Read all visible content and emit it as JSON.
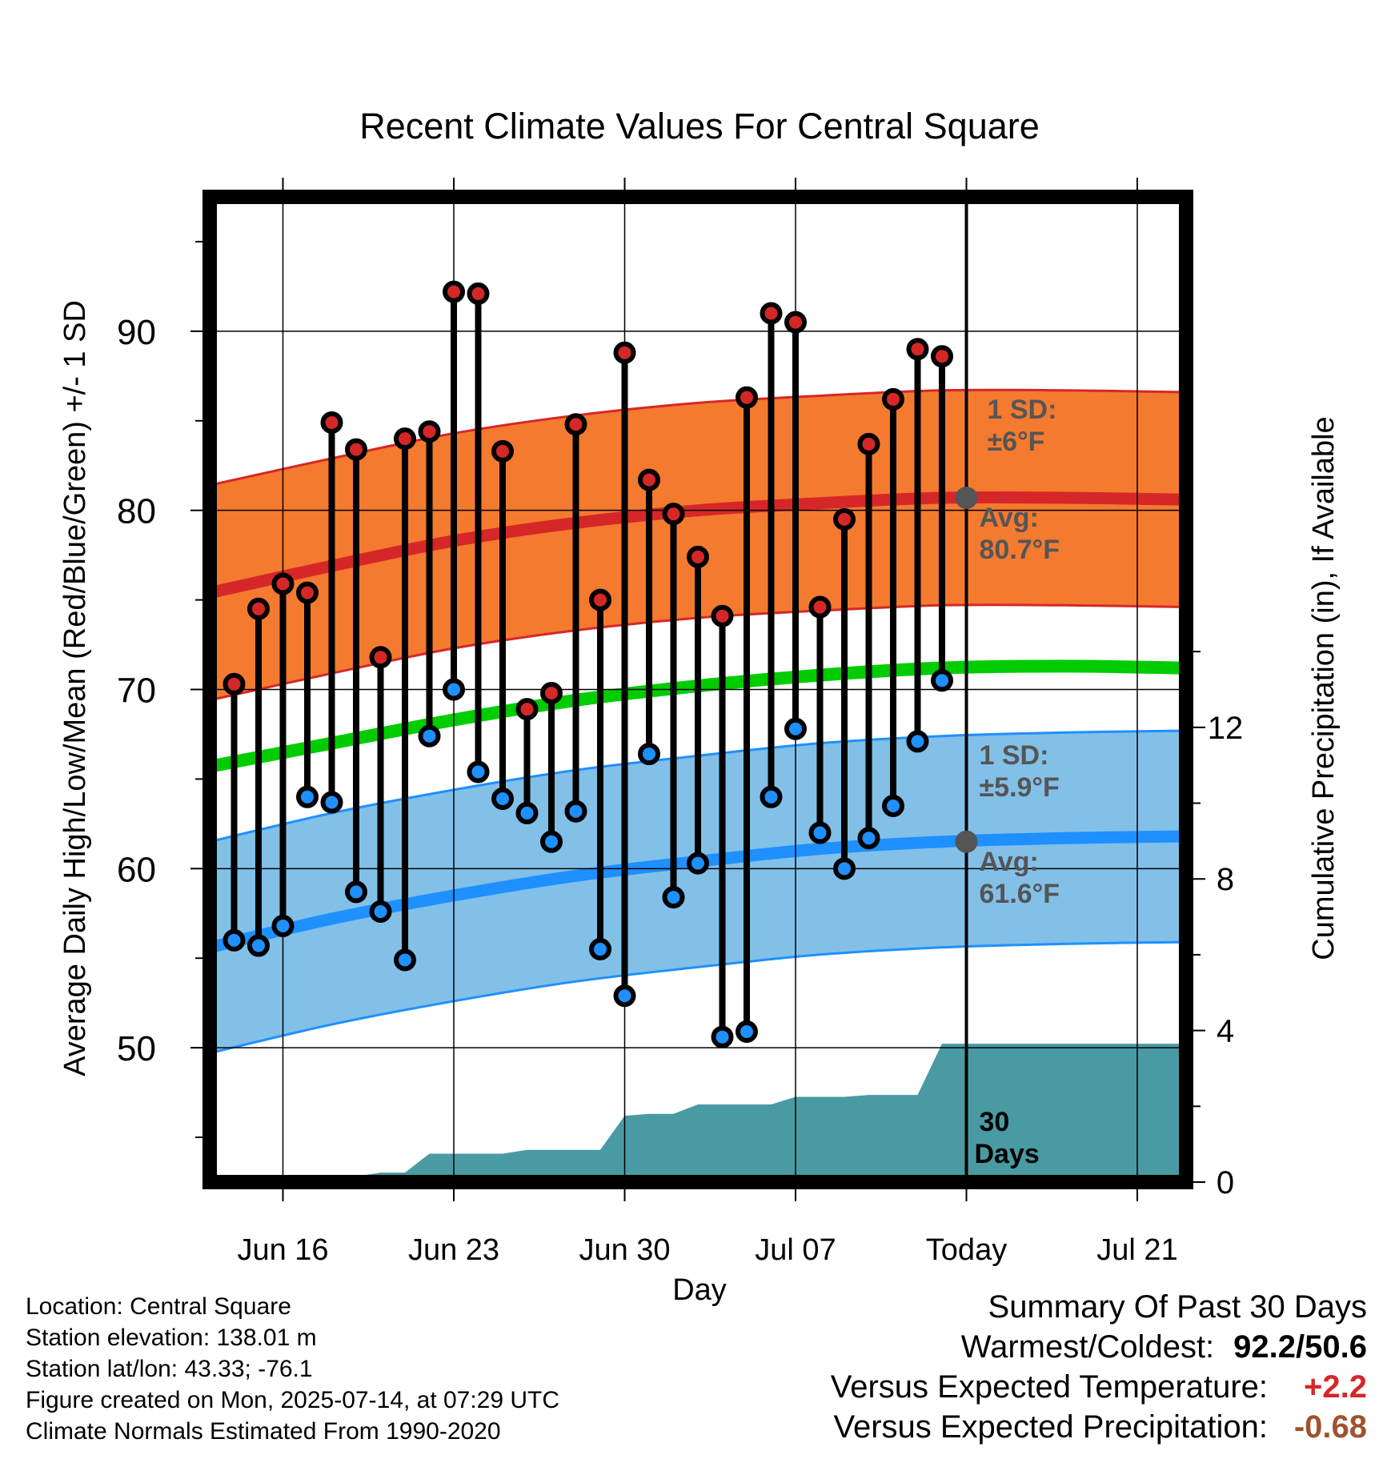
{
  "chart_data": {
    "type": "line",
    "title": "Recent Climate Values For Central Square",
    "xlabel": "Day",
    "ylabel": "Average Daily High/Low/Mean (Red/Blue/Green) +/- 1 SD",
    "y2label": "Cumulative Precipitation (in), If Available",
    "x_dates": [
      "Jun 14",
      "Jun 15",
      "Jun 16",
      "Jun 17",
      "Jun 18",
      "Jun 19",
      "Jun 20",
      "Jun 21",
      "Jun 22",
      "Jun 23",
      "Jun 24",
      "Jun 25",
      "Jun 26",
      "Jun 27",
      "Jun 28",
      "Jun 29",
      "Jun 30",
      "Jul 01",
      "Jul 02",
      "Jul 03",
      "Jul 04",
      "Jul 05",
      "Jul 06",
      "Jul 07",
      "Jul 08",
      "Jul 09",
      "Jul 10",
      "Jul 11",
      "Jul 12",
      "Jul 13",
      "Jul 14",
      "Jul 15",
      "Jul 16",
      "Jul 17",
      "Jul 18",
      "Jul 19",
      "Jul 20",
      "Jul 21",
      "Jul 22",
      "Jul 23"
    ],
    "xlim": [
      "Jun 13",
      "Jul 23"
    ],
    "ylim": [
      42.5,
      97.5
    ],
    "y2lim": [
      0,
      26
    ],
    "x_ticks": [
      {
        "date": "Jun 16",
        "label": "Jun 16"
      },
      {
        "date": "Jun 23",
        "label": "Jun 23"
      },
      {
        "date": "Jun 30",
        "label": "Jun 30"
      },
      {
        "date": "Jul 07",
        "label": "Jul 07"
      },
      {
        "date": "Jul 14",
        "label": "Today"
      },
      {
        "date": "Jul 21",
        "label": "Jul 21"
      }
    ],
    "y_ticks": [
      50,
      60,
      70,
      80,
      90
    ],
    "y2_ticks": [
      0,
      4,
      8,
      12
    ],
    "grid": true,
    "today": "Jul 14",
    "today_label": [
      "30",
      "Days"
    ],
    "series": [
      {
        "name": "High",
        "color": "#d62728",
        "dates": [
          "Jun 14",
          "Jun 15",
          "Jun 16",
          "Jun 17",
          "Jun 18",
          "Jun 19",
          "Jun 20",
          "Jun 21",
          "Jun 22",
          "Jun 23",
          "Jun 24",
          "Jun 25",
          "Jun 26",
          "Jun 27",
          "Jun 28",
          "Jun 29",
          "Jun 30",
          "Jul 01",
          "Jul 02",
          "Jul 03",
          "Jul 04",
          "Jul 05",
          "Jul 06",
          "Jul 07",
          "Jul 08",
          "Jul 09",
          "Jul 10",
          "Jul 11",
          "Jul 12",
          "Jul 13"
        ],
        "values": [
          70.3,
          74.5,
          75.9,
          75.4,
          84.9,
          83.4,
          71.8,
          84.0,
          84.4,
          92.2,
          92.1,
          83.3,
          68.9,
          69.8,
          84.8,
          75.0,
          88.8,
          81.7,
          79.8,
          77.4,
          74.1,
          86.3,
          91.0,
          90.5,
          74.6,
          79.5,
          83.7,
          86.2,
          89.0,
          88.6
        ]
      },
      {
        "name": "Low",
        "color": "#1e90ff",
        "dates": [
          "Jun 14",
          "Jun 15",
          "Jun 16",
          "Jun 17",
          "Jun 18",
          "Jun 19",
          "Jun 20",
          "Jun 21",
          "Jun 22",
          "Jun 23",
          "Jun 24",
          "Jun 25",
          "Jun 26",
          "Jun 27",
          "Jun 28",
          "Jun 29",
          "Jun 30",
          "Jul 01",
          "Jul 02",
          "Jul 03",
          "Jul 04",
          "Jul 05",
          "Jul 06",
          "Jul 07",
          "Jul 08",
          "Jul 09",
          "Jul 10",
          "Jul 11",
          "Jul 12",
          "Jul 13"
        ],
        "values": [
          56.0,
          55.7,
          56.8,
          64.0,
          63.7,
          58.7,
          57.6,
          54.9,
          67.4,
          70.0,
          65.4,
          63.9,
          63.1,
          61.5,
          63.2,
          55.5,
          52.9,
          66.4,
          58.4,
          60.3,
          50.6,
          50.9,
          64.0,
          67.8,
          62.0,
          60.0,
          61.7,
          63.5,
          67.1,
          70.5
        ]
      },
      {
        "name": "Normal High",
        "color": "#d62728",
        "dates": [
          "Jun 13",
          "Jun 18",
          "Jun 23",
          "Jun 28",
          "Jul 03",
          "Jul 08",
          "Jul 13",
          "Jul 18",
          "Jul 23"
        ],
        "values": [
          75.4,
          76.9,
          78.3,
          79.3,
          80.0,
          80.4,
          80.7,
          80.7,
          80.6
        ],
        "band_sd": 6.0
      },
      {
        "name": "Normal Mean",
        "color": "#00cc00",
        "dates": [
          "Jun 13",
          "Jun 18",
          "Jun 23",
          "Jun 28",
          "Jul 03",
          "Jul 08",
          "Jul 13",
          "Jul 18",
          "Jul 23"
        ],
        "values": [
          65.7,
          67.0,
          68.3,
          69.4,
          70.2,
          70.8,
          71.2,
          71.3,
          71.2
        ]
      },
      {
        "name": "Normal Low",
        "color": "#1e90ff",
        "dates": [
          "Jun 13",
          "Jun 18",
          "Jun 23",
          "Jun 28",
          "Jul 03",
          "Jul 08",
          "Jul 13",
          "Jul 18",
          "Jul 23"
        ],
        "values": [
          55.6,
          57.2,
          58.5,
          59.6,
          60.4,
          61.1,
          61.5,
          61.7,
          61.8
        ],
        "band_sd": 5.9
      },
      {
        "name": "Cumulative Precipitation",
        "color": "#4a9aa3",
        "dates": [
          "Jun 13",
          "Jun 18",
          "Jun 19",
          "Jun 20",
          "Jun 21",
          "Jun 22",
          "Jun 23",
          "Jun 24",
          "Jun 25",
          "Jun 26",
          "Jun 27",
          "Jun 28",
          "Jun 29",
          "Jun 30",
          "Jul 01",
          "Jul 02",
          "Jul 03",
          "Jul 04",
          "Jul 05",
          "Jul 06",
          "Jul 07",
          "Jul 08",
          "Jul 09",
          "Jul 10",
          "Jul 11",
          "Jul 12",
          "Jul 13",
          "Jul 23"
        ],
        "values": [
          0,
          0,
          0.15,
          0.25,
          0.25,
          0.75,
          0.75,
          0.75,
          0.75,
          0.85,
          0.85,
          0.85,
          0.85,
          1.75,
          1.8,
          1.8,
          2.05,
          2.05,
          2.05,
          2.05,
          2.25,
          2.25,
          2.25,
          2.3,
          2.3,
          2.3,
          3.65,
          3.65
        ]
      }
    ],
    "annotations": {
      "high_sd": [
        "1 SD:",
        "±6°F"
      ],
      "high_avg": [
        "Avg:",
        "80.7°F"
      ],
      "low_sd": [
        "1 SD:",
        "±5.9°F"
      ],
      "low_avg": [
        "Avg:",
        "61.6°F"
      ]
    },
    "colors": {
      "high_band": "#f47a2f",
      "high_band_edge": "#d62728",
      "low_band": "#82c0e8",
      "low_band_edge": "#1e90ff",
      "mean_line": "#00cc00",
      "precip": "#4a9aa3",
      "avg_marker": "#555555",
      "annotation_text": "#555555"
    }
  },
  "info": {
    "location": "Location: Central Square",
    "elevation": "Station elevation: 138.01 m",
    "latlon": "Station lat/lon: 43.33; -76.1",
    "created": "Figure created on Mon, 2025-07-14, at 07:29 UTC",
    "normals": "Climate Normals Estimated From 1990-2020"
  },
  "summary": {
    "heading": "Summary Of Past 30 Days",
    "warm_cold_label": "Warmest/Coldest:",
    "warm_cold_value": "92.2/50.6",
    "temp_label": "Versus Expected Temperature:",
    "temp_value": "+2.2",
    "temp_color": "#d62728",
    "precip_label": "Versus Expected Precipitation:",
    "precip_value": "-0.68",
    "precip_color": "#a0522d"
  }
}
